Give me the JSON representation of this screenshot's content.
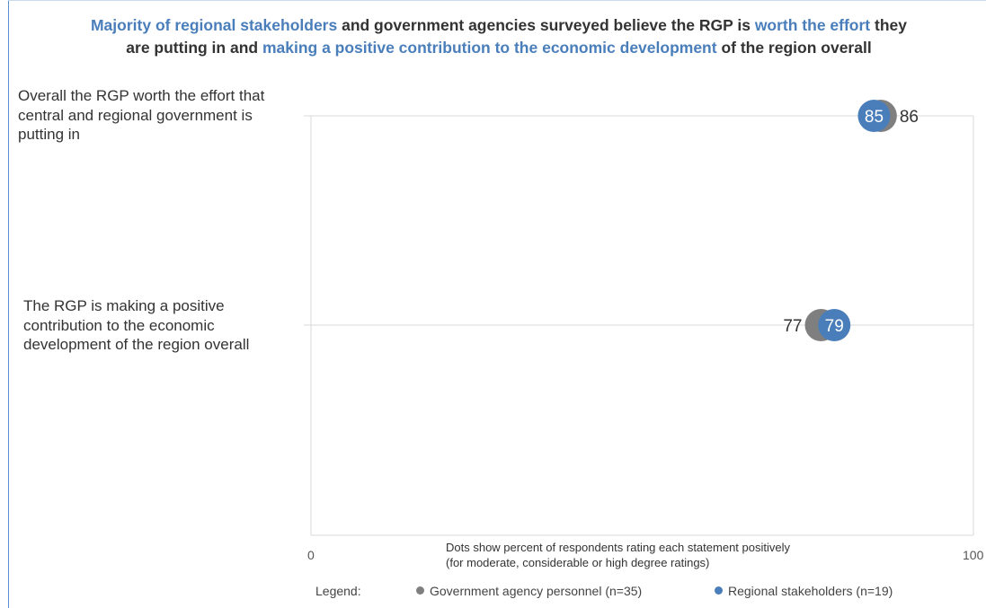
{
  "title": {
    "part1": "Majority of regional stakeholders",
    "part2": " and government agencies surveyed believe the RGP is ",
    "part3": "worth the effort",
    "part4": " they",
    "part5": "are putting in and ",
    "part6": "making a positive contribution to the economic development",
    "part7": " of the region overall"
  },
  "chart_data": {
    "type": "scatter",
    "categories": [
      "Overall the RGP worth the effort that central and regional government is putting in",
      "The RGP is making a positive contribution to the economic development of the region overall"
    ],
    "series": [
      {
        "name": "Government agency personnel (n=35)",
        "color": "#7f7f7f",
        "values": [
          86,
          77
        ]
      },
      {
        "name": "Regional stakeholders (n=19)",
        "color": "#4a7ebb",
        "values": [
          85,
          79
        ]
      }
    ],
    "xlim": [
      0,
      100
    ],
    "x_tick_labels": [
      "0",
      "100"
    ],
    "note_line1": "Dots show percent of respondents rating each statement positively",
    "note_line2": "(for moderate, considerable or high degree ratings)",
    "legend_title": "Legend:",
    "legend_placement": "bottom",
    "grid": "horizontal"
  }
}
